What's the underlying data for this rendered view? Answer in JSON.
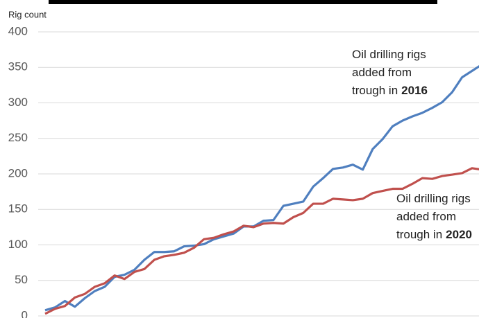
{
  "chart_data": {
    "type": "line",
    "y_label": "Rig count",
    "categories": [
      null,
      null,
      null,
      null,
      null,
      null,
      null,
      null,
      null,
      null,
      null,
      null,
      null,
      null,
      null,
      null,
      null,
      null,
      null,
      null,
      null,
      null,
      null,
      null,
      null,
      null,
      null,
      null,
      null,
      null,
      null,
      null,
      null,
      null,
      null,
      null,
      null,
      null,
      null,
      null,
      null,
      null,
      null,
      null,
      null
    ],
    "series": [
      {
        "color": "#4f7fbf",
        "values": [
          8,
          12,
          21,
          13,
          25,
          35,
          41,
          55,
          58,
          65,
          79,
          90,
          90,
          91,
          98,
          99,
          101,
          108,
          112,
          116,
          126,
          126,
          134,
          135,
          155,
          158,
          161,
          182,
          194,
          207,
          209,
          213,
          206,
          235,
          249,
          267,
          275,
          281,
          286,
          293,
          301,
          315,
          336,
          345,
          354
        ]
      },
      {
        "color": "#c0504d",
        "values": [
          3,
          10,
          14,
          26,
          31,
          41,
          46,
          57,
          52,
          62,
          66,
          79,
          84,
          86,
          89,
          96,
          108,
          110,
          115,
          119,
          127,
          125,
          130,
          131,
          130,
          139,
          145,
          158,
          158,
          165,
          164,
          163,
          165,
          173,
          176,
          179,
          179,
          186,
          194,
          193,
          197,
          199,
          201,
          208,
          206
        ]
      }
    ],
    "annotations": [
      {
        "lines": [
          "Oil drilling rigs",
          "added from",
          "trough in"
        ],
        "bold": "2016"
      },
      {
        "lines": [
          "Oil drilling rigs",
          "added from",
          "trough in"
        ],
        "bold": "2020"
      }
    ],
    "ylim": [
      0,
      400
    ],
    "yticks": [
      0,
      50,
      100,
      150,
      200,
      250,
      300,
      350,
      400
    ],
    "grid": true
  }
}
